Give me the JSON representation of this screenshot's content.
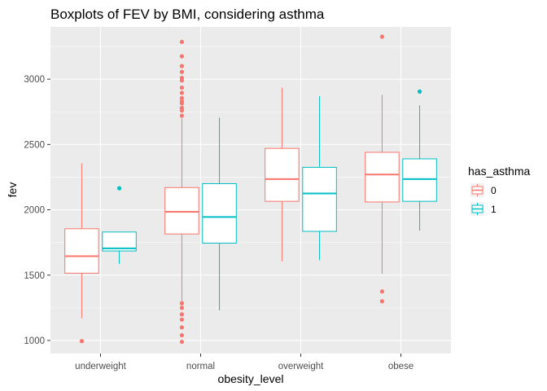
{
  "chart_data": {
    "type": "boxplot",
    "title": "Boxplots of FEV by BMI, considering asthma",
    "xlabel": "obesity_level",
    "ylabel": "fev",
    "categories": [
      "underweight",
      "normal",
      "overweight",
      "obese"
    ],
    "ylim": [
      900,
      3400
    ],
    "yticks": [
      1000,
      1500,
      2000,
      2500,
      3000
    ],
    "grid": true,
    "legend": {
      "title": "has_asthma",
      "placement": "right",
      "entries": [
        "0",
        "1"
      ]
    },
    "series": [
      {
        "name": "0",
        "color": "#F8766D",
        "boxes": [
          {
            "category": "underweight",
            "whisker_low": 1170,
            "q1": 1515,
            "median": 1645,
            "q3": 1855,
            "whisker_high": 2355,
            "outliers": [
              995
            ]
          },
          {
            "category": "normal",
            "whisker_low": 1300,
            "q1": 1815,
            "median": 1985,
            "q3": 2170,
            "whisker_high": 2700,
            "outliers": [
              3285,
              3175,
              3100,
              3055,
              3010,
              2990,
              2935,
              2895,
              2855,
              2830,
              2815,
              2780,
              2760,
              2720,
              1285,
              1250,
              1200,
              1160,
              1100,
              1040,
              990
            ]
          },
          {
            "category": "overweight",
            "whisker_low": 1605,
            "q1": 2065,
            "median": 2235,
            "q3": 2470,
            "whisker_high": 2935,
            "outliers": []
          },
          {
            "category": "obese",
            "whisker_low": 1510,
            "q1": 2060,
            "median": 2270,
            "q3": 2440,
            "whisker_high": 2880,
            "outliers": [
              3325,
              1375,
              1300
            ]
          }
        ]
      },
      {
        "name": "1",
        "color": "#00BFC4",
        "boxes": [
          {
            "category": "underweight",
            "whisker_low": 1585,
            "q1": 1685,
            "median": 1705,
            "q3": 1830,
            "whisker_high": 1830,
            "outliers": [
              2165
            ]
          },
          {
            "category": "normal",
            "whisker_low": 1230,
            "q1": 1745,
            "median": 1945,
            "q3": 2200,
            "whisker_high": 2705,
            "outliers": []
          },
          {
            "category": "overweight",
            "whisker_low": 1615,
            "q1": 1835,
            "median": 2125,
            "q3": 2325,
            "whisker_high": 2870,
            "outliers": []
          },
          {
            "category": "obese",
            "whisker_low": 1840,
            "q1": 2065,
            "median": 2235,
            "q3": 2390,
            "whisker_high": 2800,
            "outliers": [
              2905
            ]
          }
        ]
      }
    ]
  }
}
